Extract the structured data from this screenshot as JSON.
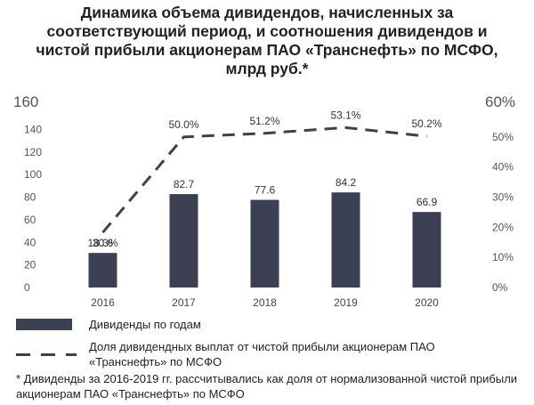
{
  "title": "Динамика объема дивидендов, начисленных за соответствующий период, и соотношения дивидендов и чистой прибыли акционерам ПАО «Транснефть» по МСФО, млрд руб.*",
  "legend": {
    "bars": "Дивиденды по годам",
    "line": "Доля дивидендных выплат от чистой прибыли акционерам ПАО «Транснефть» по МСФО"
  },
  "footnote": "* Дивиденды за 2016-2019 гг. рассчитывались как доля от нормализованной чистой прибыли акционерам ПАО «Транснефть» по МСФО",
  "colors": {
    "bar": "#3b4152",
    "line": "#3b4152",
    "text": "#555555"
  },
  "chart_data": {
    "type": "bar",
    "categories": [
      "2016",
      "2017",
      "2018",
      "2019",
      "2020"
    ],
    "series": [
      {
        "name": "Дивиденды по годам",
        "type": "bar",
        "axis": "left",
        "values": [
          30.6,
          82.7,
          77.6,
          84.2,
          66.9
        ],
        "labels": [
          "30.6",
          "82.7",
          "77.6",
          "84.2",
          "66.9"
        ]
      },
      {
        "name": "Доля дивидендных выплат от чистой прибыли акционерам ПАО «Транснефть» по МСФО",
        "type": "line",
        "style": "dashed",
        "axis": "right",
        "values": [
          18.3,
          50.0,
          51.2,
          53.1,
          50.2
        ],
        "labels": [
          "18.3%",
          "50.0%",
          "51.2%",
          "53.1%",
          "50.2%"
        ]
      }
    ],
    "y_left": {
      "ylim": [
        0,
        160
      ],
      "ticks": [
        "0",
        "20",
        "40",
        "60",
        "80",
        "100",
        "120",
        "140",
        "160"
      ]
    },
    "y_right": {
      "ylim": [
        0,
        60
      ],
      "ticks": [
        "0%",
        "10%",
        "20%",
        "30%",
        "40%",
        "50%",
        "60%"
      ]
    },
    "grid": false
  }
}
